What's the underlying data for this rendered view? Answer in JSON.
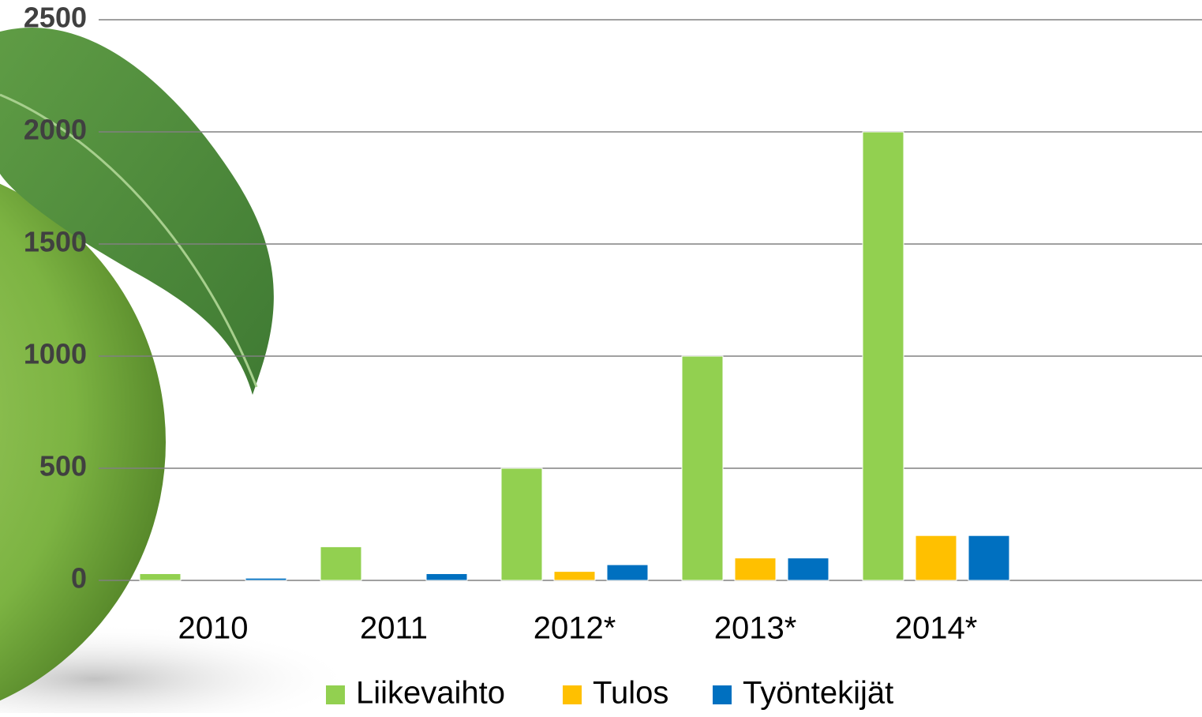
{
  "chart_data": {
    "type": "bar",
    "categories": [
      "2010",
      "2011",
      "2012*",
      "2013*",
      "2014*"
    ],
    "series": [
      {
        "name": "Liikevaihto",
        "color": "#92d050",
        "values": [
          30,
          150,
          500,
          1000,
          2000
        ]
      },
      {
        "name": "Tulos",
        "color": "#ffc000",
        "values": [
          0,
          0,
          40,
          100,
          200
        ]
      },
      {
        "name": "Työntekijät",
        "color": "#0070c0",
        "values": [
          10,
          30,
          70,
          100,
          200
        ]
      }
    ],
    "ylim": [
      0,
      2500
    ],
    "yticks": [
      0,
      500,
      1000,
      1500,
      2000,
      2500
    ],
    "grid": true,
    "legend": "bottom"
  }
}
